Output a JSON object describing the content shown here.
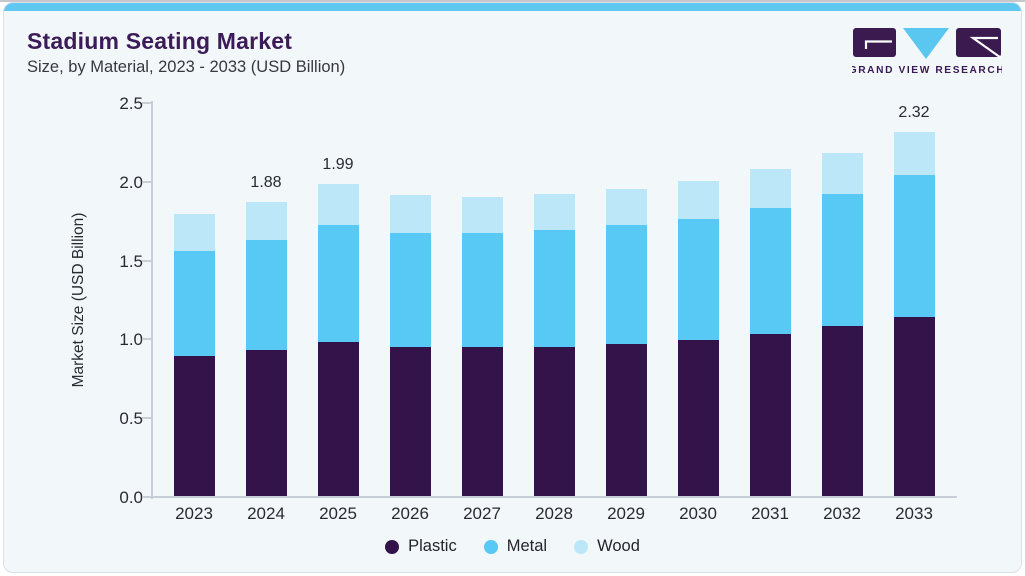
{
  "header": {
    "title": "Stadium Seating Market",
    "subtitle": "Size, by Material, 2023 - 2033 (USD Billion)",
    "logo_text": "GRAND VIEW RESEARCH"
  },
  "colors": {
    "plastic": "#34124a",
    "metal": "#58c8f4",
    "wood": "#bce7f8",
    "accent_strip": "#60c8f0",
    "title_text": "#3b1b58",
    "logo_purple": "#3a1a4f",
    "logo_cyan": "#59c7f0",
    "card_background": "#f2f7fa",
    "axis_line": "#c8ced6",
    "text_dark": "#2a2a33"
  },
  "chart_data": {
    "type": "bar",
    "stacked": true,
    "title": "Stadium Seating Market",
    "subtitle": "Size, by Material, 2023 - 2033 (USD Billion)",
    "categories": [
      "2023",
      "2024",
      "2025",
      "2026",
      "2027",
      "2028",
      "2029",
      "2030",
      "2031",
      "2032",
      "2033"
    ],
    "series": [
      {
        "name": "Plastic",
        "color_key": "plastic",
        "values": [
          0.9,
          0.94,
          0.99,
          0.96,
          0.96,
          0.96,
          0.98,
          1.0,
          1.04,
          1.09,
          1.15
        ]
      },
      {
        "name": "Metal",
        "color_key": "metal",
        "values": [
          0.67,
          0.7,
          0.74,
          0.72,
          0.72,
          0.74,
          0.75,
          0.77,
          0.8,
          0.84,
          0.9
        ]
      },
      {
        "name": "Wood",
        "color_key": "wood",
        "values": [
          0.23,
          0.24,
          0.26,
          0.24,
          0.23,
          0.23,
          0.23,
          0.24,
          0.25,
          0.26,
          0.27
        ]
      }
    ],
    "totals": [
      1.8,
      1.88,
      1.99,
      1.92,
      1.91,
      1.93,
      1.96,
      2.01,
      2.09,
      2.19,
      2.32
    ],
    "bar_labels": {
      "2024": "1.88",
      "2025": "1.99",
      "2033": "2.32"
    },
    "ylabel": "Market Size (USD Billion)",
    "xlabel": "",
    "yticks": [
      "0.0",
      "0.5",
      "1.0",
      "1.5",
      "2.0",
      "2.5"
    ],
    "ylim": [
      0,
      2.5
    ],
    "grid": false,
    "legend": [
      "Plastic",
      "Metal",
      "Wood"
    ],
    "legend_position": "bottom"
  }
}
